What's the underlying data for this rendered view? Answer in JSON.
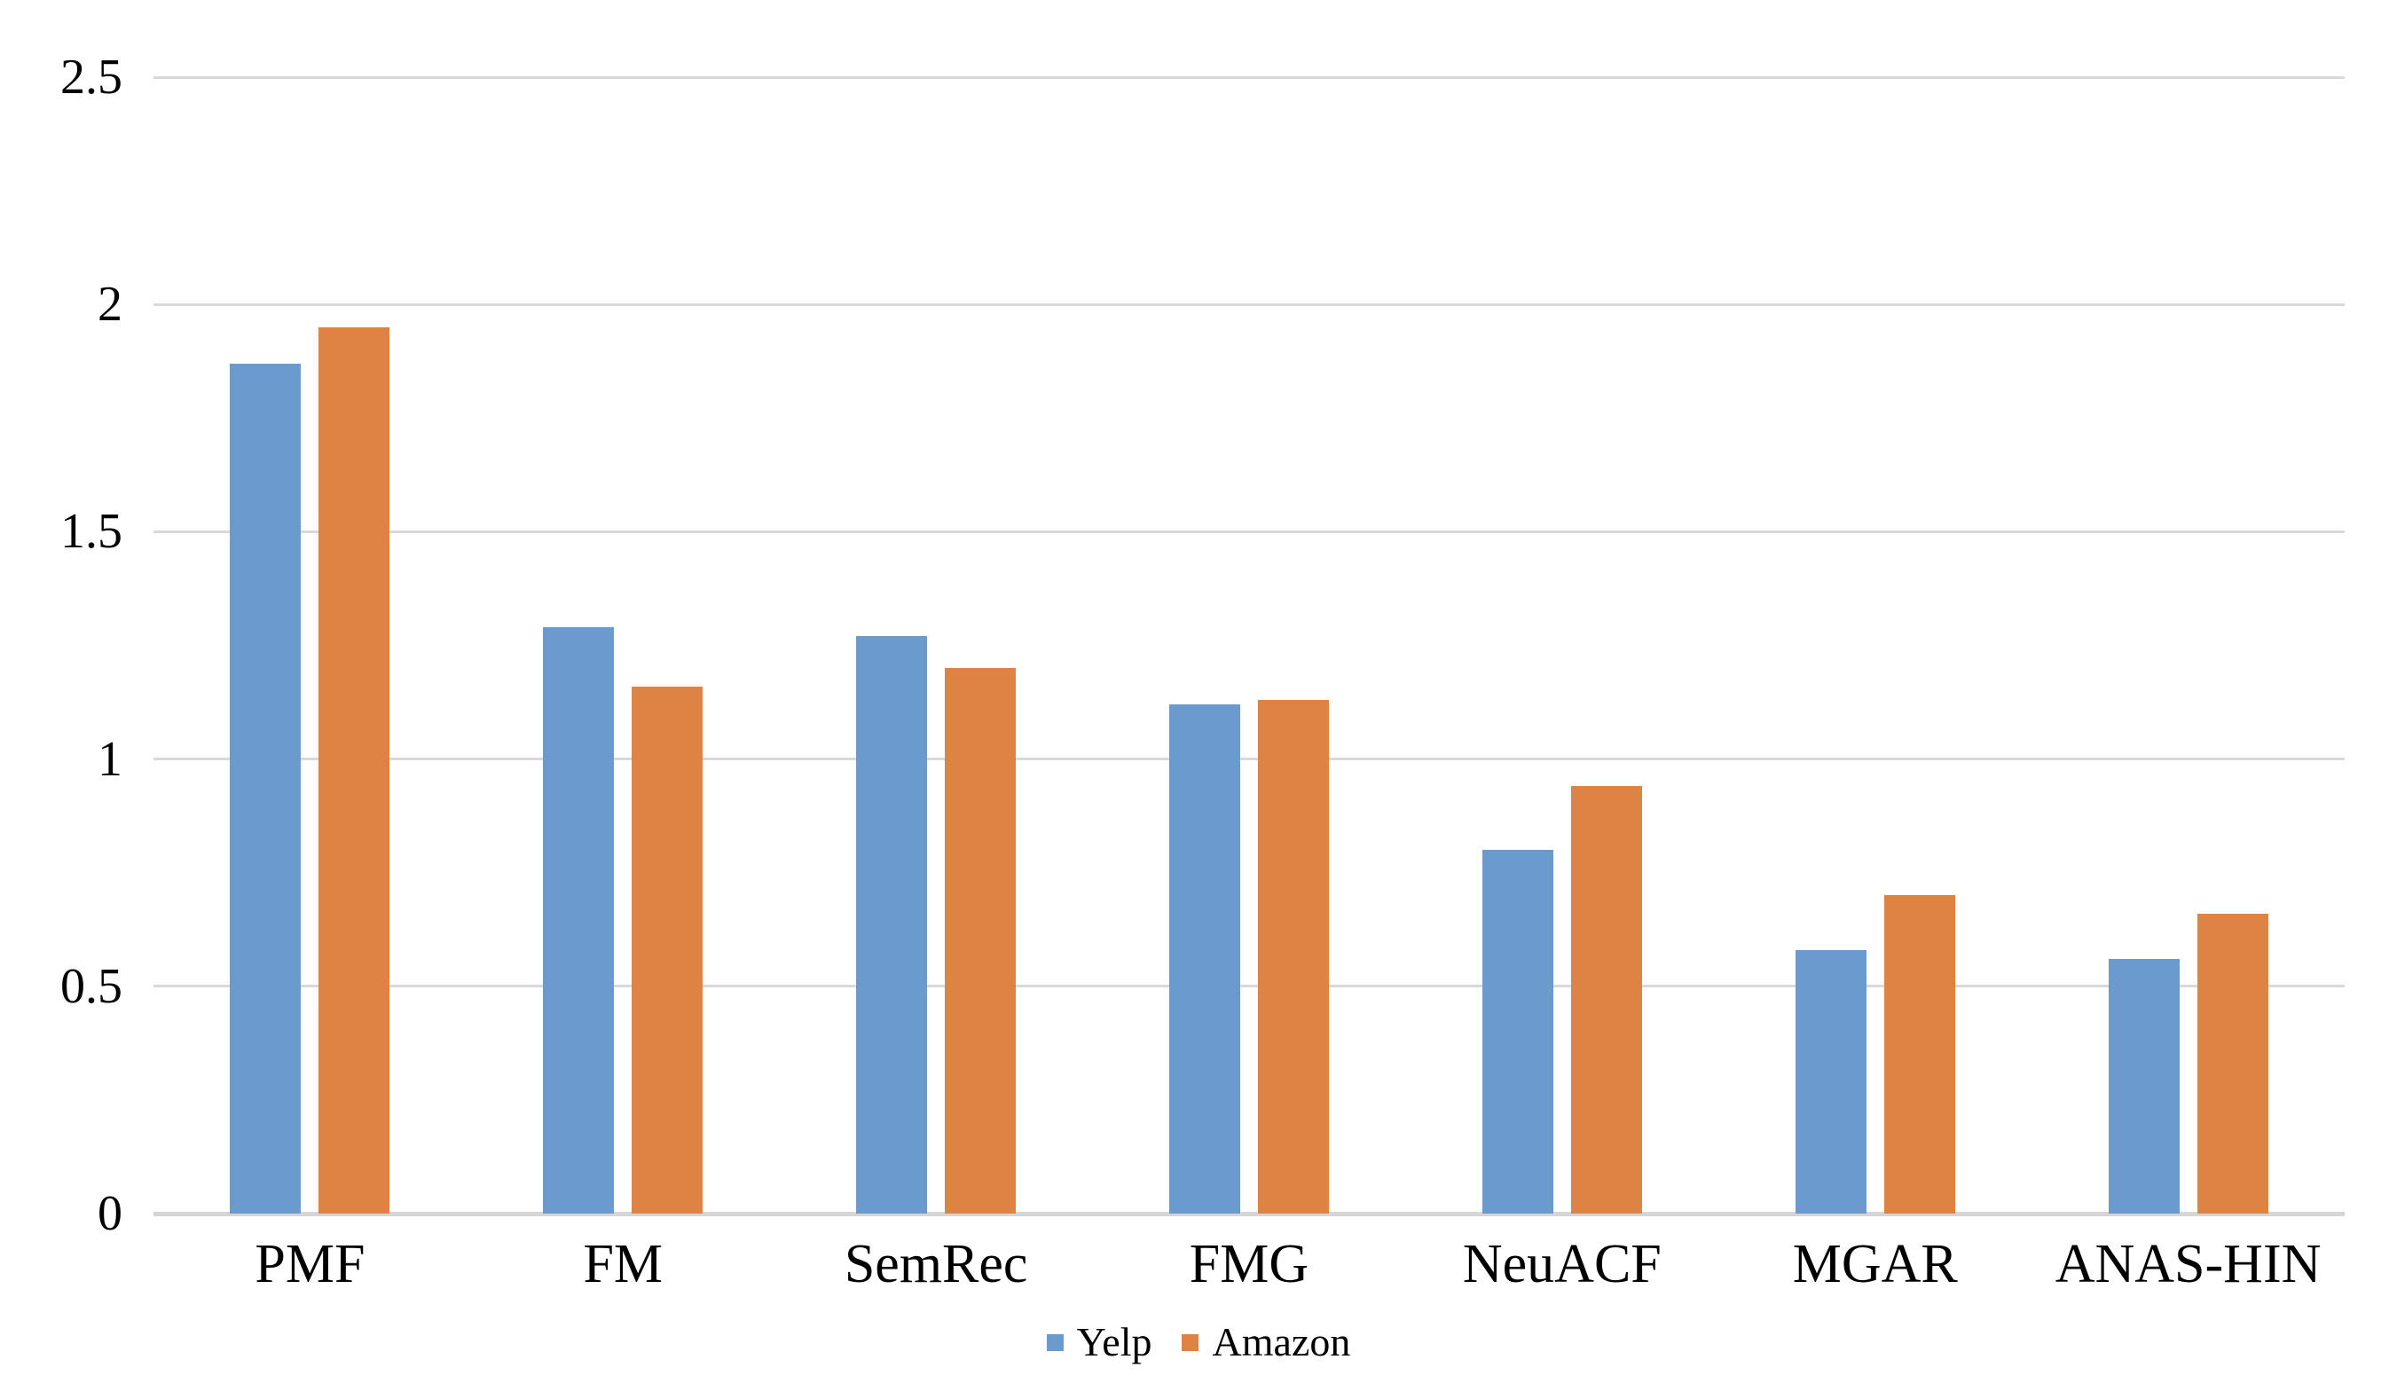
{
  "chart_data": {
    "type": "bar",
    "title": "",
    "xlabel": "",
    "ylabel": "",
    "categories": [
      "PMF",
      "FM",
      "SemRec",
      "FMG",
      "NeuACF",
      "MGAR",
      "ANAS-HIN"
    ],
    "series": [
      {
        "name": "Yelp",
        "color": "#6B9ACE",
        "values": [
          1.87,
          1.29,
          1.27,
          1.12,
          0.8,
          0.58,
          0.56
        ]
      },
      {
        "name": "Amazon",
        "color": "#DE8344",
        "values": [
          1.95,
          1.16,
          1.2,
          1.13,
          0.94,
          0.7,
          0.66
        ]
      }
    ],
    "ylim": [
      0,
      2.5
    ],
    "yticks": [
      0,
      0.5,
      1,
      1.5,
      2,
      2.5
    ],
    "ytick_labels": [
      "0",
      "0.5",
      "1",
      "1.5",
      "2",
      "2.5"
    ],
    "grid": true,
    "gridline_color": "#D9D9D9",
    "legend_position": "bottom-center",
    "background_color": "#FFFFFF",
    "text_color": "#000000"
  }
}
